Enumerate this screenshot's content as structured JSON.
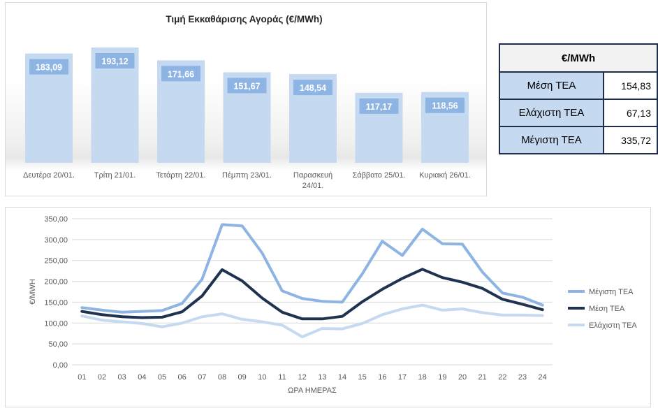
{
  "colors": {
    "bar": "#c5d9f1",
    "bar_label_bg": "#8eb4e3",
    "max_series": "#8eb4e3",
    "avg_series": "#1f3350",
    "min_series": "#c5d9f1",
    "table_border": "#1f2d4d"
  },
  "table": {
    "header": "€/MWh",
    "rows": [
      {
        "label": "Μέση ΤΕΑ",
        "value": "154,83"
      },
      {
        "label": "Ελάχιστη ΤΕΑ",
        "value": "67,13"
      },
      {
        "label": "Μέγιστη ΤΕΑ",
        "value": "335,72"
      }
    ]
  },
  "chart_data": [
    {
      "type": "bar",
      "title": "Τιμή Εκκαθάρισης Αγοράς (€/MWh)",
      "categories": [
        "Δευτέρα 20/01.",
        "Τρίτη 21/01.",
        "Τετάρτη 22/01.",
        "Πέμπτη 23/01.",
        "Παρασκευή 24/01.",
        "Σάββατο 25/01.",
        "Κυριακή 26/01."
      ],
      "category_lines": [
        [
          "Δευτέρα 20/01."
        ],
        [
          "Τρίτη 21/01."
        ],
        [
          "Τετάρτη 22/01."
        ],
        [
          "Πέμπτη 23/01."
        ],
        [
          "Παρασκευή",
          "24/01."
        ],
        [
          "Σάββατο 25/01."
        ],
        [
          "Κυριακή 26/01."
        ]
      ],
      "values": [
        183.09,
        193.12,
        171.66,
        151.67,
        148.54,
        117.17,
        118.56
      ],
      "value_labels": [
        "183,09",
        "193,12",
        "171,66",
        "151,67",
        "148,54",
        "117,17",
        "118,56"
      ],
      "grid": false,
      "legend": "none"
    },
    {
      "type": "line",
      "xlabel": "ΩΡΑ ΗΜΕΡΑΣ",
      "ylabel": "€/MWH",
      "x": [
        "01",
        "02",
        "03",
        "04",
        "05",
        "06",
        "07",
        "08",
        "09",
        "10",
        "11",
        "12",
        "13",
        "14",
        "15",
        "16",
        "17",
        "18",
        "19",
        "20",
        "21",
        "22",
        "23",
        "24"
      ],
      "ylim": [
        0,
        350
      ],
      "yticks": [
        "0,00",
        "50,00",
        "100,00",
        "150,00",
        "200,00",
        "250,00",
        "300,00",
        "350,00"
      ],
      "ytick_values": [
        0,
        50,
        100,
        150,
        200,
        250,
        300,
        350
      ],
      "grid": true,
      "legend": "right",
      "series": [
        {
          "name": "Μέγιστη ΤΕΑ",
          "color_key": "max_series",
          "values": [
            137,
            131,
            126,
            128,
            130,
            147,
            205,
            336,
            333,
            268,
            177,
            159,
            152,
            150,
            218,
            296,
            262,
            325,
            290,
            289,
            222,
            172,
            162,
            143
          ]
        },
        {
          "name": "Μέση ΤΕΑ",
          "color_key": "avg_series",
          "values": [
            128,
            120,
            115,
            113,
            114,
            127,
            165,
            228,
            201,
            160,
            126,
            110,
            110,
            116,
            151,
            181,
            207,
            229,
            209,
            198,
            183,
            157,
            145,
            132
          ]
        },
        {
          "name": "Ελάχιστη ΤΕΑ",
          "color_key": "min_series",
          "values": [
            117,
            107,
            103,
            99,
            91,
            100,
            115,
            122,
            109,
            103,
            95,
            67,
            87,
            86,
            99,
            120,
            134,
            143,
            131,
            134,
            125,
            119,
            119,
            118
          ]
        }
      ]
    }
  ]
}
